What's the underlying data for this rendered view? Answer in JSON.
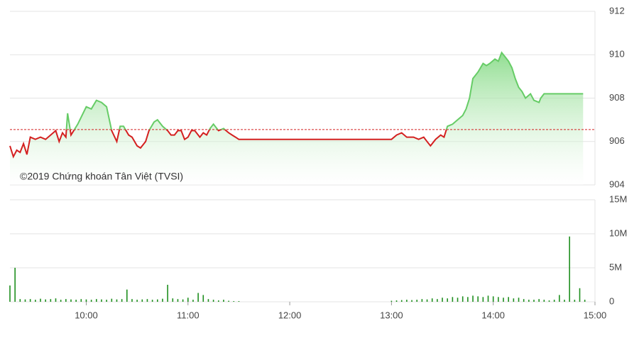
{
  "chart_data": [
    {
      "type": "line",
      "annotation": "©2019 Chứng khoán Tân Việt (TVSI)",
      "xlim": [
        555,
        900
      ],
      "ylim": [
        904,
        912
      ],
      "yticks": [
        904,
        906,
        908,
        910,
        912
      ],
      "reference_line": 906.55,
      "up_color": "#66cc66",
      "down_color": "#d42020",
      "grid": true,
      "x": [
        555,
        557,
        559,
        561,
        563,
        565,
        567,
        570,
        573,
        576,
        579,
        582,
        584,
        586,
        588,
        589,
        591,
        595,
        600,
        603,
        606,
        609,
        612,
        615,
        618,
        620,
        622,
        625,
        627,
        630,
        632,
        635,
        637,
        640,
        642,
        645,
        648,
        650,
        652,
        654,
        656,
        658,
        660,
        662,
        664,
        667,
        669,
        671,
        673,
        675,
        678,
        681,
        684,
        686,
        688,
        690,
        780,
        783,
        786,
        789,
        793,
        796,
        799,
        801,
        803,
        806,
        809,
        811,
        813,
        816,
        819,
        822,
        824,
        826,
        828,
        831,
        834,
        836,
        838,
        841,
        843,
        845,
        847,
        849,
        851,
        853,
        855,
        857,
        859,
        862,
        864,
        867,
        868,
        870,
        880,
        893
      ],
      "values": [
        905.8,
        905.3,
        905.6,
        905.5,
        905.9,
        905.4,
        906.2,
        906.1,
        906.2,
        906.1,
        906.3,
        906.5,
        906.0,
        906.4,
        906.2,
        907.3,
        906.3,
        906.8,
        907.6,
        907.5,
        907.9,
        907.8,
        907.6,
        906.5,
        906.0,
        906.7,
        906.7,
        906.3,
        906.2,
        905.8,
        905.7,
        906.0,
        906.5,
        906.9,
        907.0,
        906.7,
        906.5,
        906.3,
        906.3,
        906.5,
        906.5,
        906.1,
        906.2,
        906.5,
        906.5,
        906.2,
        906.4,
        906.3,
        906.6,
        906.8,
        906.5,
        906.6,
        906.4,
        906.3,
        906.2,
        906.1,
        906.1,
        906.3,
        906.4,
        906.2,
        906.2,
        906.1,
        906.2,
        906.0,
        905.8,
        906.1,
        906.3,
        906.2,
        906.7,
        906.8,
        907.0,
        907.2,
        907.5,
        908.0,
        908.9,
        909.2,
        909.6,
        909.5,
        909.6,
        909.8,
        909.7,
        910.1,
        909.9,
        909.7,
        909.4,
        908.9,
        908.5,
        908.3,
        908.0,
        908.2,
        907.9,
        907.8,
        908.0,
        908.2,
        908.2,
        908.2
      ]
    },
    {
      "type": "bar",
      "color": "#1f8f1f",
      "grid": true,
      "xlim": [
        555,
        900
      ],
      "ylim": [
        0,
        15000000
      ],
      "yticks": [
        0,
        {
          "value": 5000000,
          "label": "5M"
        },
        {
          "value": 10000000,
          "label": "10M"
        },
        {
          "value": 15000000,
          "label": "15M"
        }
      ],
      "xticks": [
        {
          "value": 600,
          "label": "10:00"
        },
        {
          "value": 660,
          "label": "11:00"
        },
        {
          "value": 720,
          "label": "12:00"
        },
        {
          "value": 780,
          "label": "13:00"
        },
        {
          "value": 840,
          "label": "14:00"
        },
        {
          "value": 900,
          "label": "15:00"
        }
      ],
      "x": [
        555,
        558,
        561,
        564,
        567,
        570,
        573,
        576,
        579,
        582,
        585,
        588,
        591,
        594,
        597,
        600,
        603,
        606,
        609,
        612,
        615,
        618,
        621,
        624,
        627,
        630,
        633,
        636,
        639,
        642,
        645,
        648,
        651,
        654,
        657,
        660,
        663,
        666,
        669,
        672,
        675,
        678,
        681,
        684,
        687,
        690,
        780,
        783,
        786,
        789,
        792,
        795,
        798,
        801,
        804,
        807,
        810,
        813,
        816,
        819,
        822,
        825,
        828,
        831,
        834,
        837,
        840,
        843,
        846,
        849,
        852,
        855,
        858,
        861,
        864,
        867,
        870,
        873,
        876,
        879,
        882,
        885,
        888,
        891,
        894
      ],
      "values": [
        2400000,
        5000000,
        400000,
        350000,
        400000,
        300000,
        450000,
        350000,
        400000,
        500000,
        300000,
        400000,
        350000,
        300000,
        400000,
        350000,
        300000,
        400000,
        350000,
        300000,
        450000,
        350000,
        400000,
        1800000,
        400000,
        300000,
        350000,
        400000,
        300000,
        350000,
        450000,
        2500000,
        500000,
        400000,
        350000,
        600000,
        300000,
        1300000,
        1000000,
        400000,
        300000,
        200000,
        300000,
        150000,
        100000,
        100000,
        150000,
        200000,
        250000,
        300000,
        250000,
        300000,
        400000,
        350000,
        500000,
        400000,
        600000,
        500000,
        700000,
        600000,
        800000,
        700000,
        900000,
        800000,
        700000,
        900000,
        800000,
        700000,
        600000,
        700000,
        500000,
        600000,
        400000,
        300000,
        300000,
        400000,
        300000,
        200000,
        300000,
        1000000,
        300000,
        9600000,
        300000,
        2000000,
        300000
      ]
    }
  ]
}
